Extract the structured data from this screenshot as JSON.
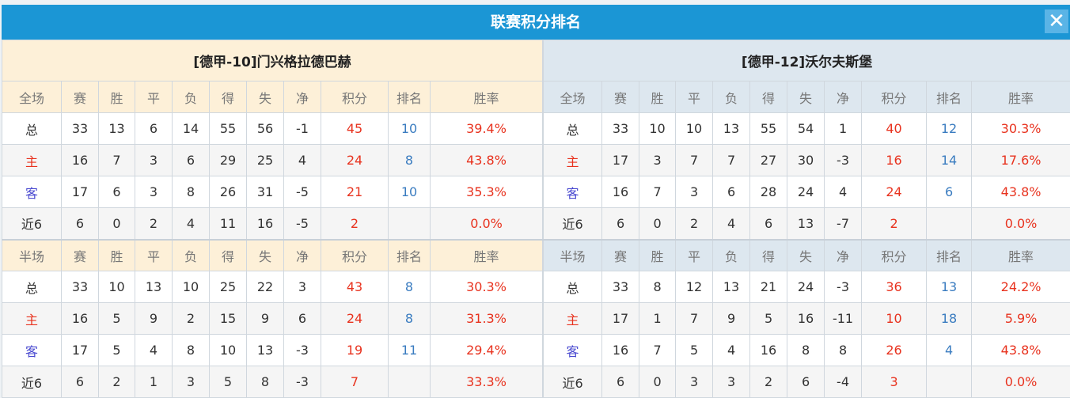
{
  "title": "联赛积分排名",
  "colors": {
    "title_bar": "#1b96d5",
    "home_header": "#fdf0d8",
    "away_header": "#dde7ef",
    "points": "#e8321e",
    "rank": "#3a7cc0"
  },
  "columns": [
    "赛",
    "胜",
    "平",
    "负",
    "得",
    "失",
    "净",
    "积分",
    "排名",
    "胜率"
  ],
  "teams": [
    {
      "name": "[德甲-10]门兴格拉德巴赫",
      "sections": [
        {
          "label": "全场",
          "rows": [
            [
              "总",
              "33",
              "13",
              "6",
              "14",
              "55",
              "56",
              "-1",
              "45",
              "10",
              "39.4%"
            ],
            [
              "主",
              "16",
              "7",
              "3",
              "6",
              "29",
              "25",
              "4",
              "24",
              "8",
              "43.8%"
            ],
            [
              "客",
              "17",
              "6",
              "3",
              "8",
              "26",
              "31",
              "-5",
              "21",
              "10",
              "35.3%"
            ],
            [
              "近6",
              "6",
              "0",
              "2",
              "4",
              "11",
              "16",
              "-5",
              "2",
              "",
              "0.0%"
            ]
          ]
        },
        {
          "label": "半场",
          "rows": [
            [
              "总",
              "33",
              "10",
              "13",
              "10",
              "25",
              "22",
              "3",
              "43",
              "8",
              "30.3%"
            ],
            [
              "主",
              "16",
              "5",
              "9",
              "2",
              "15",
              "9",
              "6",
              "24",
              "8",
              "31.3%"
            ],
            [
              "客",
              "17",
              "5",
              "4",
              "8",
              "10",
              "13",
              "-3",
              "19",
              "11",
              "29.4%"
            ],
            [
              "近6",
              "6",
              "2",
              "1",
              "3",
              "5",
              "8",
              "-3",
              "7",
              "",
              "33.3%"
            ]
          ]
        }
      ]
    },
    {
      "name": "[德甲-12]沃尔夫斯堡",
      "sections": [
        {
          "label": "全场",
          "rows": [
            [
              "总",
              "33",
              "10",
              "10",
              "13",
              "55",
              "54",
              "1",
              "40",
              "12",
              "30.3%"
            ],
            [
              "主",
              "17",
              "3",
              "7",
              "7",
              "27",
              "30",
              "-3",
              "16",
              "14",
              "17.6%"
            ],
            [
              "客",
              "16",
              "7",
              "3",
              "6",
              "28",
              "24",
              "4",
              "24",
              "6",
              "43.8%"
            ],
            [
              "近6",
              "6",
              "0",
              "2",
              "4",
              "6",
              "13",
              "-7",
              "2",
              "",
              "0.0%"
            ]
          ]
        },
        {
          "label": "半场",
          "rows": [
            [
              "总",
              "33",
              "8",
              "12",
              "13",
              "21",
              "24",
              "-3",
              "36",
              "13",
              "24.2%"
            ],
            [
              "主",
              "17",
              "1",
              "7",
              "9",
              "5",
              "16",
              "-11",
              "10",
              "18",
              "5.9%"
            ],
            [
              "客",
              "16",
              "7",
              "5",
              "4",
              "16",
              "8",
              "8",
              "26",
              "4",
              "43.8%"
            ],
            [
              "近6",
              "6",
              "0",
              "3",
              "3",
              "2",
              "6",
              "-4",
              "3",
              "",
              "0.0%"
            ]
          ]
        }
      ]
    }
  ]
}
